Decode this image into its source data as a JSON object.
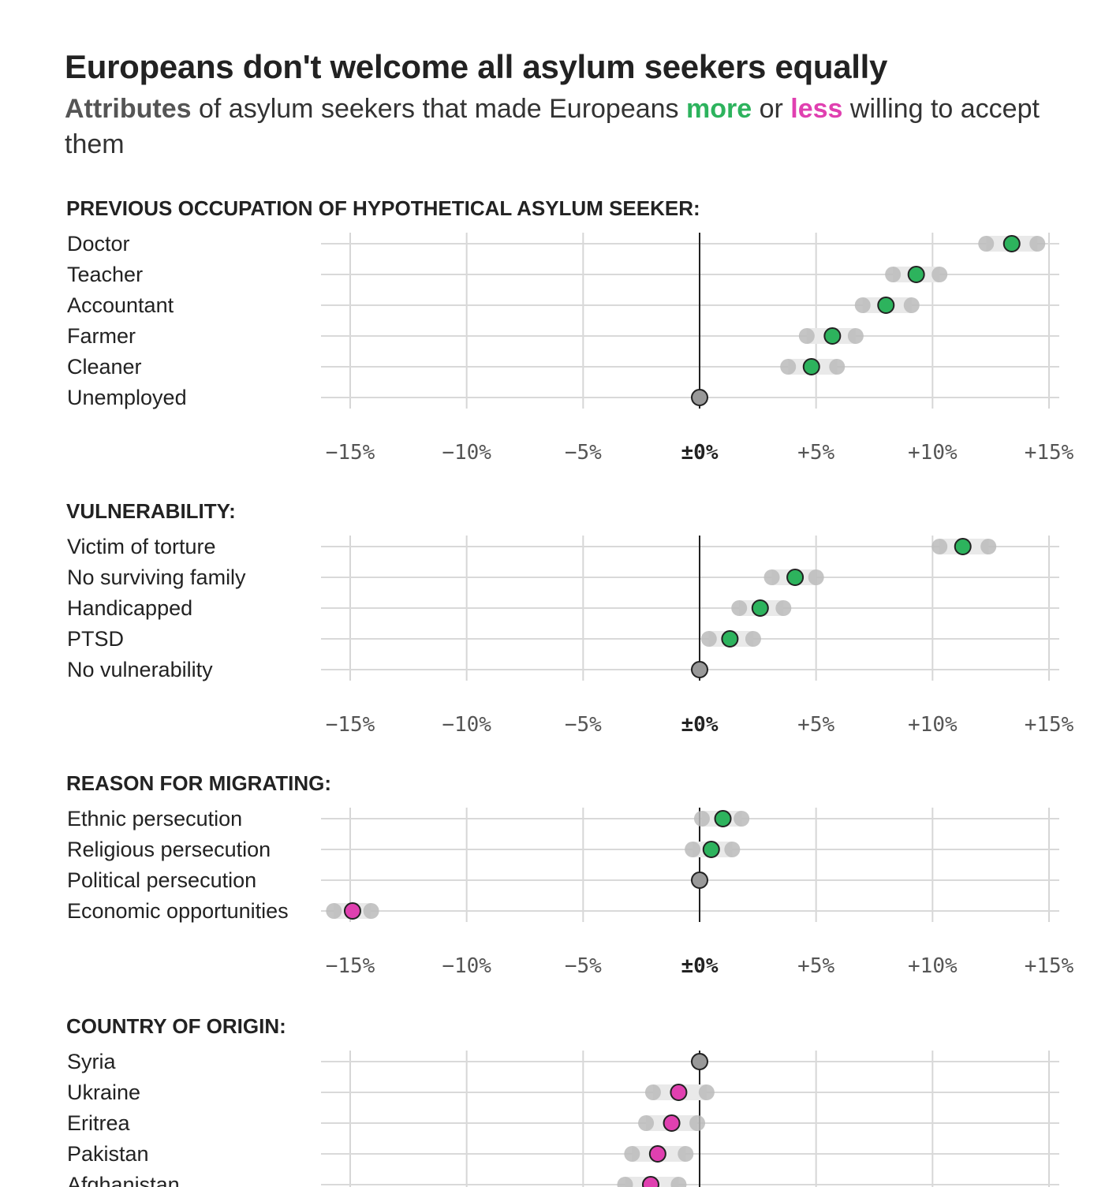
{
  "title": "Europeans don't welcome all asylum seekers equally",
  "subtitle": {
    "part_attributes": "Attributes",
    "part_1": " of asylum seekers that made Europeans ",
    "part_more": "more",
    "part_2": " or ",
    "part_less": "less",
    "part_3": " willing to accept them"
  },
  "colors": {
    "more": "#2db35d",
    "less": "#e040b0",
    "baseline": "#999999",
    "ci": "#bbbbbb"
  },
  "chart_data": {
    "type": "scatter",
    "xlim": [
      -15,
      15
    ],
    "xticks": [
      -15,
      -10,
      -5,
      0,
      5,
      10,
      15
    ],
    "xtick_labels": [
      "−15%",
      "−10%",
      "−5%",
      "±0%",
      "+5%",
      "+10%",
      "+15%"
    ],
    "panels": [
      {
        "title": "PREVIOUS OCCUPATION OF HYPOTHETICAL ASYLUM SEEKER:",
        "rows": [
          {
            "label": "Doctor",
            "value": 13.4,
            "low": 12.3,
            "high": 14.5,
            "effect": "more"
          },
          {
            "label": "Teacher",
            "value": 9.3,
            "low": 8.3,
            "high": 10.3,
            "effect": "more"
          },
          {
            "label": "Accountant",
            "value": 8.0,
            "low": 7.0,
            "high": 9.1,
            "effect": "more"
          },
          {
            "label": "Farmer",
            "value": 5.7,
            "low": 4.6,
            "high": 6.7,
            "effect": "more"
          },
          {
            "label": "Cleaner",
            "value": 4.8,
            "low": 3.8,
            "high": 5.9,
            "effect": "more"
          },
          {
            "label": "Unemployed",
            "value": 0,
            "low": null,
            "high": null,
            "effect": "baseline"
          }
        ]
      },
      {
        "title": "VULNERABILITY:",
        "rows": [
          {
            "label": "Victim of torture",
            "value": 11.3,
            "low": 10.3,
            "high": 12.4,
            "effect": "more"
          },
          {
            "label": "No surviving family",
            "value": 4.1,
            "low": 3.1,
            "high": 5.0,
            "effect": "more"
          },
          {
            "label": "Handicapped",
            "value": 2.6,
            "low": 1.7,
            "high": 3.6,
            "effect": "more"
          },
          {
            "label": "PTSD",
            "value": 1.3,
            "low": 0.4,
            "high": 2.3,
            "effect": "more"
          },
          {
            "label": "No vulnerability",
            "value": 0,
            "low": null,
            "high": null,
            "effect": "baseline"
          }
        ]
      },
      {
        "title": "REASON FOR MIGRATING:",
        "rows": [
          {
            "label": "Ethnic persecution",
            "value": 1.0,
            "low": 0.1,
            "high": 1.8,
            "effect": "more"
          },
          {
            "label": "Religious persecution",
            "value": 0.5,
            "low": -0.3,
            "high": 1.4,
            "effect": "more"
          },
          {
            "label": "Political persecution",
            "value": 0,
            "low": null,
            "high": null,
            "effect": "baseline"
          },
          {
            "label": "Economic opportunities",
            "value": -14.9,
            "low": -15.7,
            "high": -14.1,
            "effect": "less"
          }
        ]
      },
      {
        "title": "COUNTRY OF ORIGIN:",
        "rows": [
          {
            "label": "Syria",
            "value": 0,
            "low": null,
            "high": null,
            "effect": "baseline"
          },
          {
            "label": "Ukraine",
            "value": -0.9,
            "low": -2.0,
            "high": 0.3,
            "effect": "less"
          },
          {
            "label": "Eritrea",
            "value": -1.2,
            "low": -2.3,
            "high": -0.1,
            "effect": "less"
          },
          {
            "label": "Pakistan",
            "value": -1.8,
            "low": -2.9,
            "high": -0.6,
            "effect": "less"
          },
          {
            "label": "Afghanistan",
            "value": -2.1,
            "low": -3.2,
            "high": -0.9,
            "effect": "less"
          }
        ]
      }
    ]
  }
}
